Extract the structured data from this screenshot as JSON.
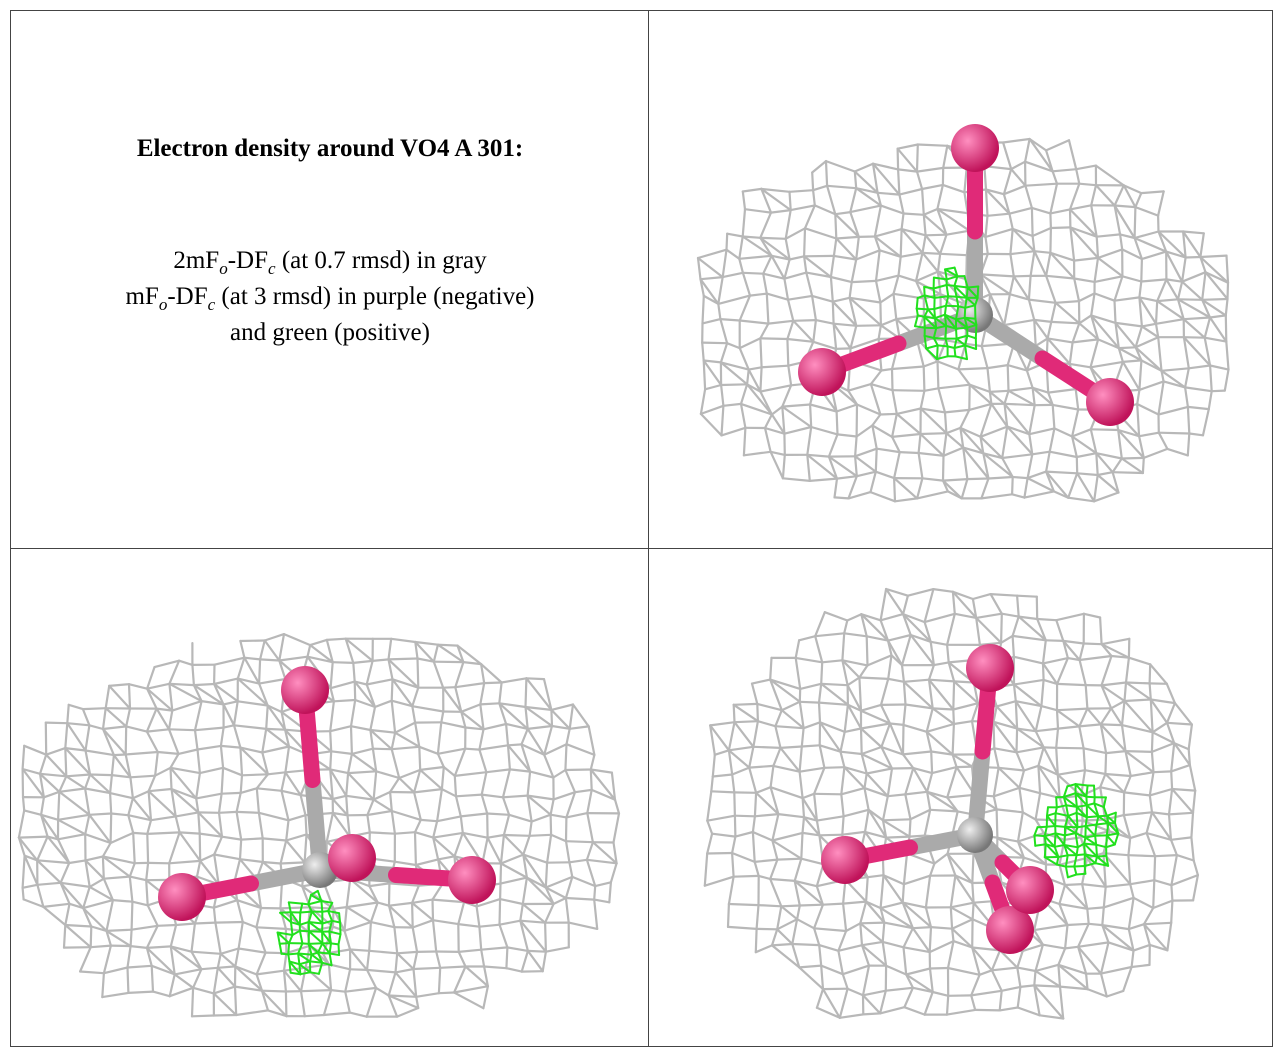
{
  "panel": {
    "title": "Electron density around VO4 A 301:",
    "legend_lines": [
      [
        {
          "text": "2mF"
        },
        {
          "sub": "o"
        },
        {
          "text": "-DF"
        },
        {
          "sub": "c"
        },
        {
          "text": " (at 0.7 rmsd) in gray"
        }
      ],
      [
        {
          "text": "mF"
        },
        {
          "sub": "o"
        },
        {
          "text": "-DF"
        },
        {
          "sub": "c"
        },
        {
          "text": " (at 3 rmsd) in purple (negative)"
        }
      ],
      [
        {
          "text": "and green (positive)"
        }
      ]
    ]
  }
}
